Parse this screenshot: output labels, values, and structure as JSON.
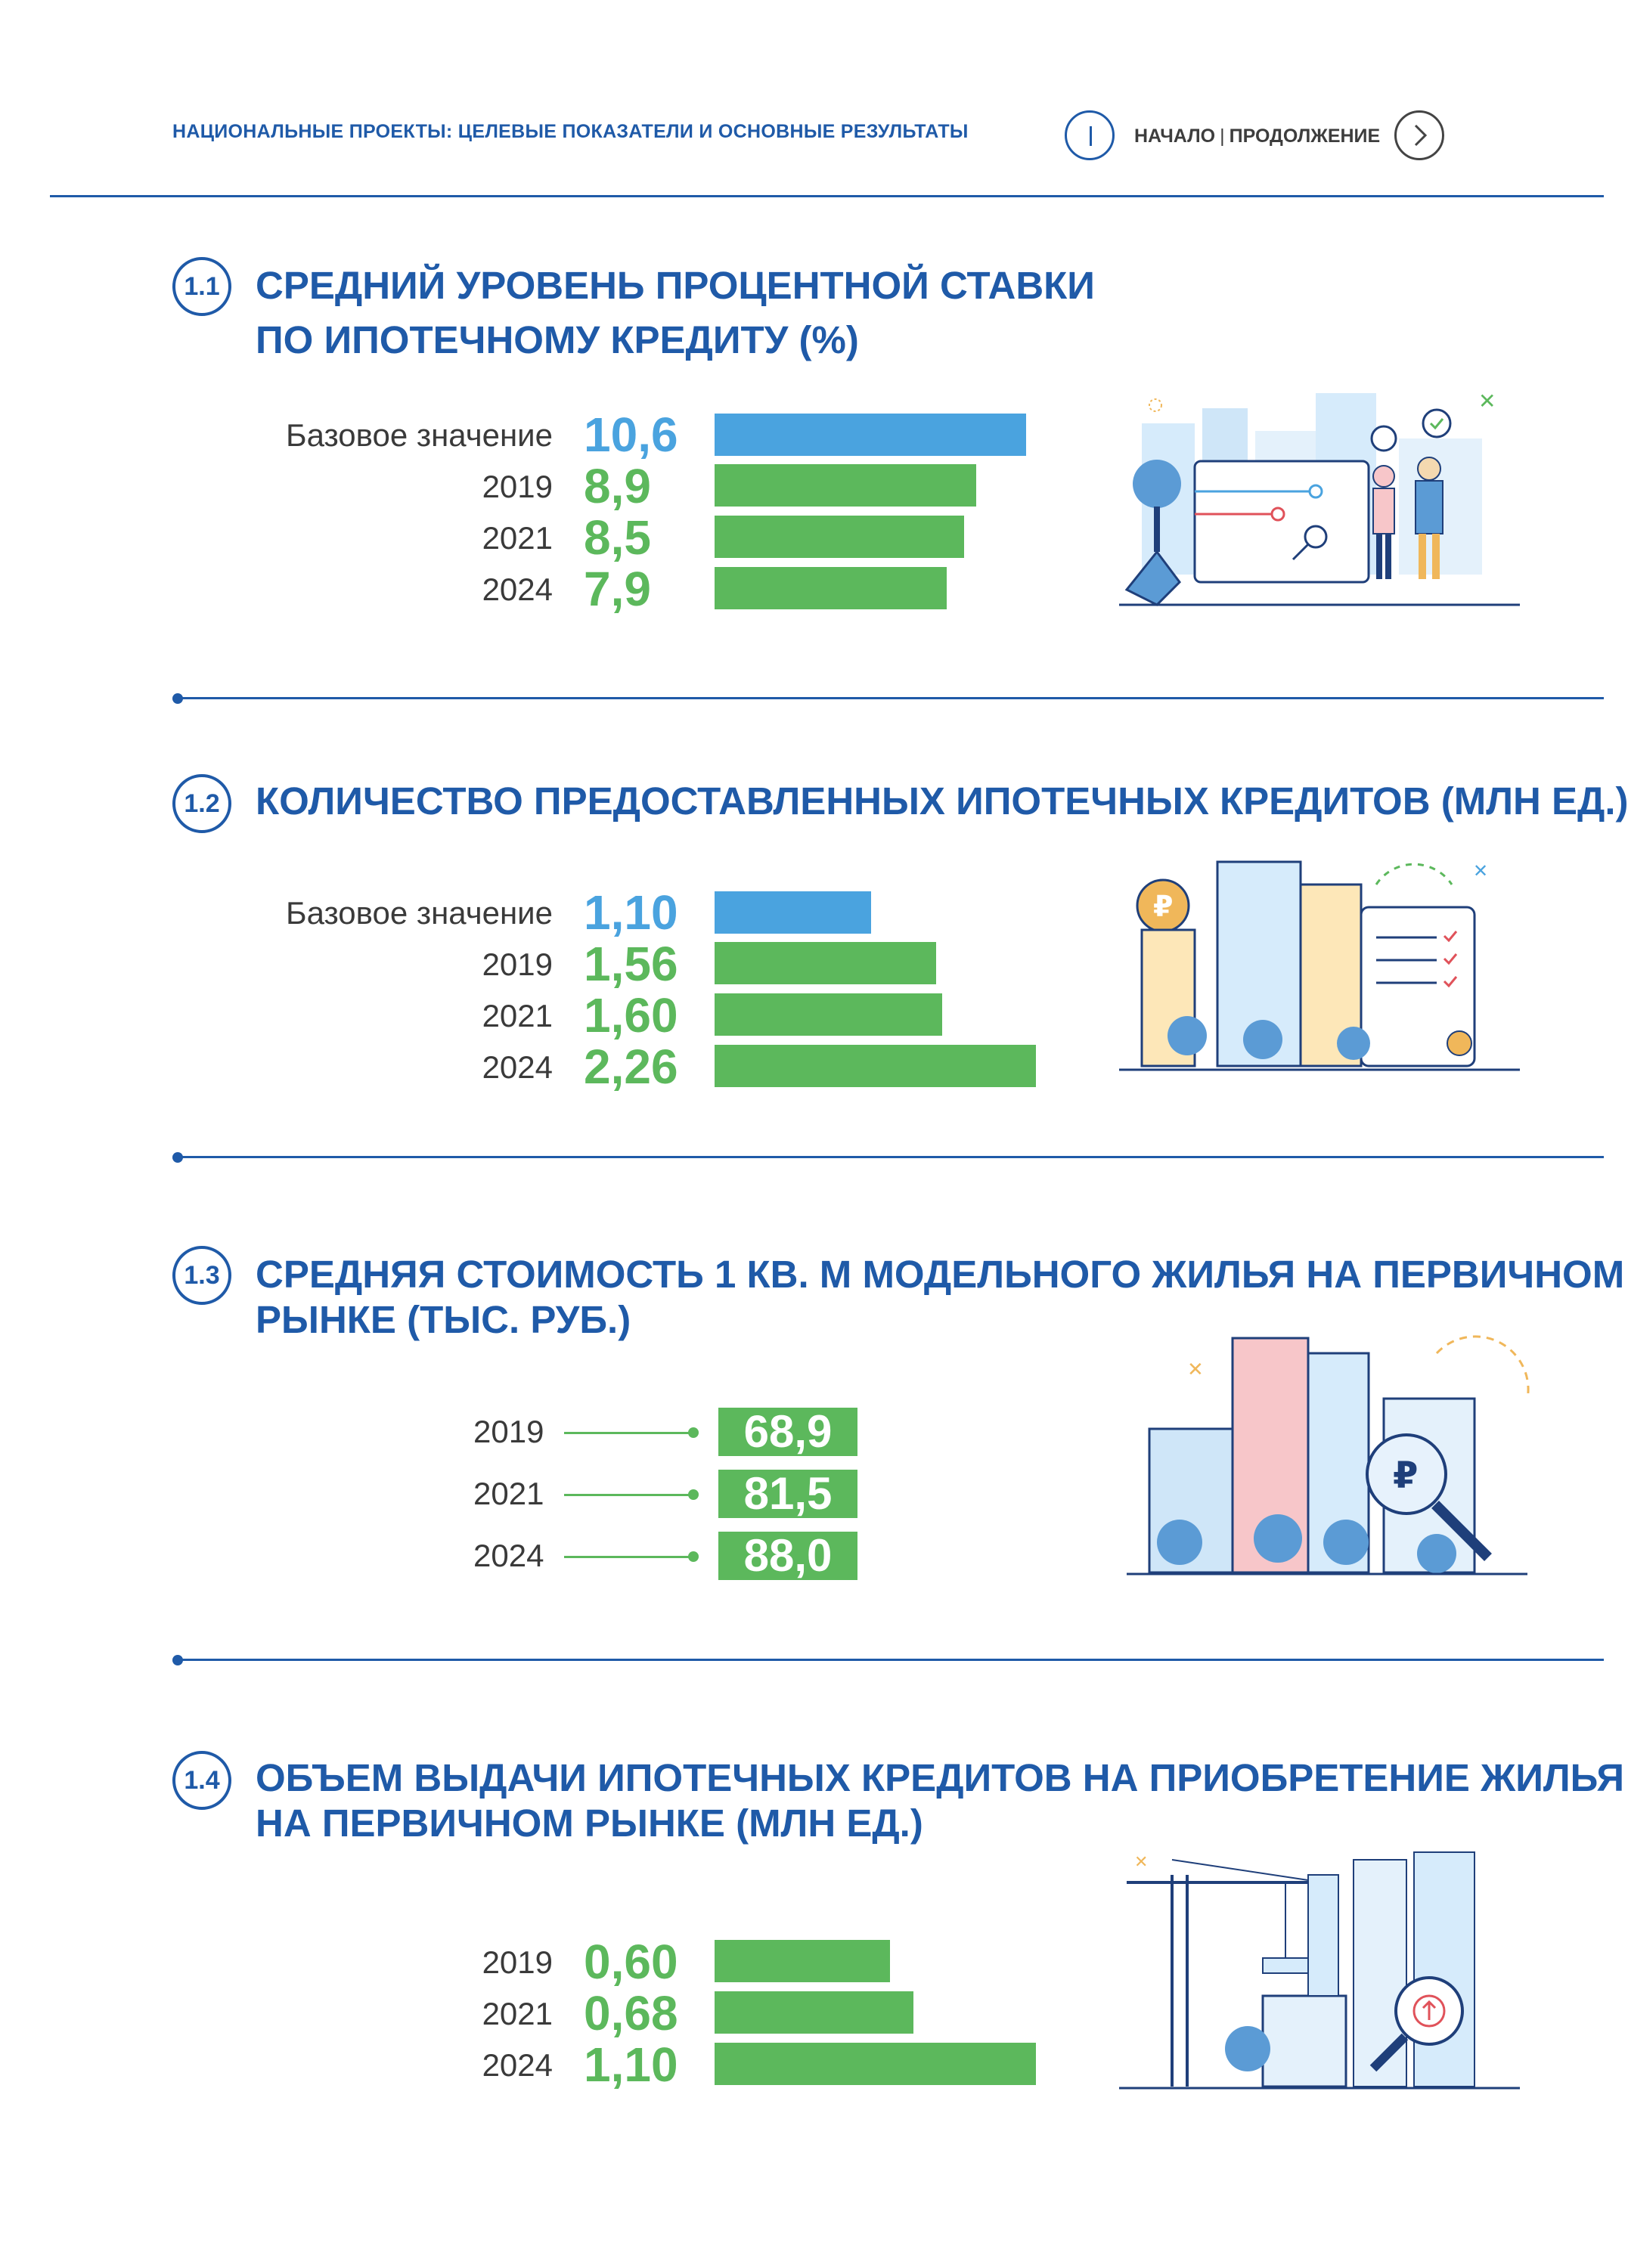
{
  "header": {
    "title": "НАЦИОНАЛЬНЫЕ ПРОЕКТЫ: ЦЕЛЕВЫЕ ПОКАЗАТЕЛИ И ОСНОВНЫЕ РЕЗУЛЬТАТЫ",
    "nav_start": "НАЧАЛО",
    "nav_sep": "|",
    "nav_continue": "ПРОДОЛЖЕНИЕ"
  },
  "sections": [
    {
      "num": "1.1",
      "title_line1": "СРЕДНИЙ УРОВЕНЬ ПРОЦЕНТНОЙ СТАВКИ",
      "title_line2": "ПО ИПОТЕЧНОМУ КРЕДИТУ (%)",
      "rows": [
        {
          "label": "Базовое значение",
          "value": "10,6",
          "num": 10.6,
          "kind": "base"
        },
        {
          "label": "2019",
          "value": "8,9",
          "num": 8.9,
          "kind": "year"
        },
        {
          "label": "2021",
          "value": "8,5",
          "num": 8.5,
          "kind": "year"
        },
        {
          "label": "2024",
          "value": "7,9",
          "num": 7.9,
          "kind": "year"
        }
      ]
    },
    {
      "num": "1.2",
      "title_line1": "КОЛИЧЕСТВО ПРЕДОСТАВЛЕННЫХ ИПОТЕЧНЫХ КРЕДИТОВ (МЛН ЕД.)",
      "rows": [
        {
          "label": "Базовое значение",
          "value": "1,10",
          "num": 1.1,
          "kind": "base"
        },
        {
          "label": "2019",
          "value": "1,56",
          "num": 1.56,
          "kind": "year"
        },
        {
          "label": "2021",
          "value": "1,60",
          "num": 1.6,
          "kind": "year"
        },
        {
          "label": "2024",
          "value": "2,26",
          "num": 2.26,
          "kind": "year"
        }
      ]
    },
    {
      "num": "1.3",
      "title_line1": "СРЕДНЯЯ СТОИМОСТЬ 1 КВ. М МОДЕЛЬНОГО ЖИЛЬЯ НА ПЕРВИЧНОМ",
      "title_line2": "РЫНКЕ (ТЫС. РУБ.)",
      "rows": [
        {
          "label": "2019",
          "value": "68,9"
        },
        {
          "label": "2021",
          "value": "81,5"
        },
        {
          "label": "2024",
          "value": "88,0"
        }
      ]
    },
    {
      "num": "1.4",
      "title_line1": "ОБЪЕМ ВЫДАЧИ ИПОТЕЧНЫХ КРЕДИТОВ НА ПРИОБРЕТЕНИЕ ЖИЛЬЯ",
      "title_line2": "НА ПЕРВИЧНОМ РЫНКЕ (МЛН ЕД.)",
      "rows": [
        {
          "label": "2019",
          "value": "0,60",
          "num": 0.6,
          "kind": "year"
        },
        {
          "label": "2021",
          "value": "0,68",
          "num": 0.68,
          "kind": "year"
        },
        {
          "label": "2024",
          "value": "1,10",
          "num": 1.1,
          "kind": "year"
        }
      ]
    }
  ],
  "chart_data": [
    {
      "type": "bar",
      "title": "СРЕДНИЙ УРОВЕНЬ ПРОЦЕНТНОЙ СТАВКИ ПО ИПОТЕЧНОМУ КРЕДИТУ (%)",
      "categories": [
        "Базовое значение",
        "2019",
        "2021",
        "2024"
      ],
      "values": [
        10.6,
        8.9,
        8.5,
        7.9
      ]
    },
    {
      "type": "bar",
      "title": "КОЛИЧЕСТВО ПРЕДОСТАВЛЕННЫХ ИПОТЕЧНЫХ КРЕДИТОВ (МЛН ЕД.)",
      "categories": [
        "Базовое значение",
        "2019",
        "2021",
        "2024"
      ],
      "values": [
        1.1,
        1.56,
        1.6,
        2.26
      ]
    },
    {
      "type": "table",
      "title": "СРЕДНЯЯ СТОИМОСТЬ 1 КВ. М МОДЕЛЬНОГО ЖИЛЬЯ НА ПЕРВИЧНОМ РЫНКЕ (ТЫС. РУБ.)",
      "categories": [
        "2019",
        "2021",
        "2024"
      ],
      "values": [
        68.9,
        81.5,
        88.0
      ]
    },
    {
      "type": "bar",
      "title": "ОБЪЕМ ВЫДАЧИ ИПОТЕЧНЫХ КРЕДИТОВ НА ПРИОБРЕТЕНИЕ ЖИЛЬЯ НА ПЕРВИЧНОМ РЫНКЕ (МЛН ЕД.)",
      "categories": [
        "2019",
        "2021",
        "2024"
      ],
      "values": [
        0.6,
        0.68,
        1.1
      ]
    }
  ],
  "colors": {
    "primary": "#1f5aa8",
    "base_bar": "#4aa3df",
    "year_bar": "#5cb85c"
  }
}
